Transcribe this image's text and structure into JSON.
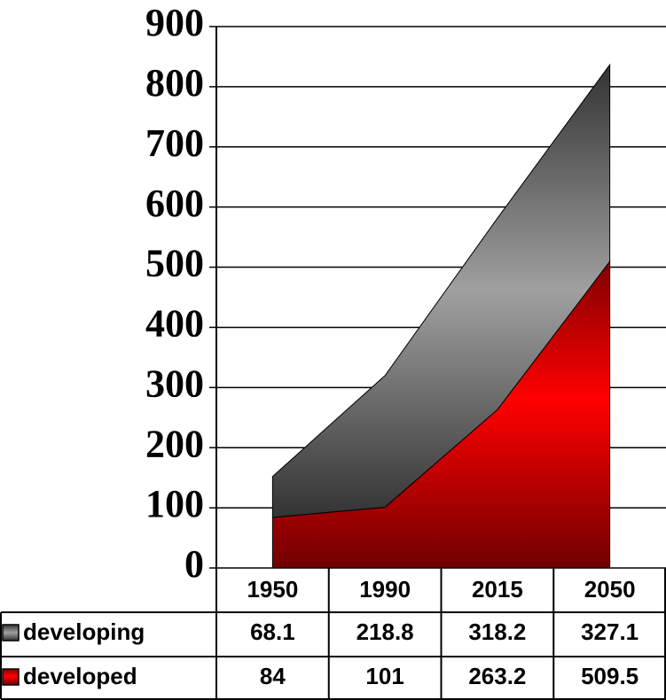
{
  "chart_data": {
    "type": "area",
    "stacked": true,
    "categories": [
      "1950",
      "1990",
      "2015",
      "2050"
    ],
    "series": [
      {
        "name": "developing",
        "color": "#8c8c8c",
        "values": [
          68.1,
          218.8,
          318.2,
          327.1
        ]
      },
      {
        "name": "developed",
        "color": "#ff0000",
        "values": [
          84,
          101,
          263.2,
          509.5
        ]
      }
    ],
    "ylim": [
      0,
      900
    ],
    "yticks": [
      0,
      100,
      200,
      300,
      400,
      500,
      600,
      700,
      800,
      900
    ],
    "grid": true
  }
}
